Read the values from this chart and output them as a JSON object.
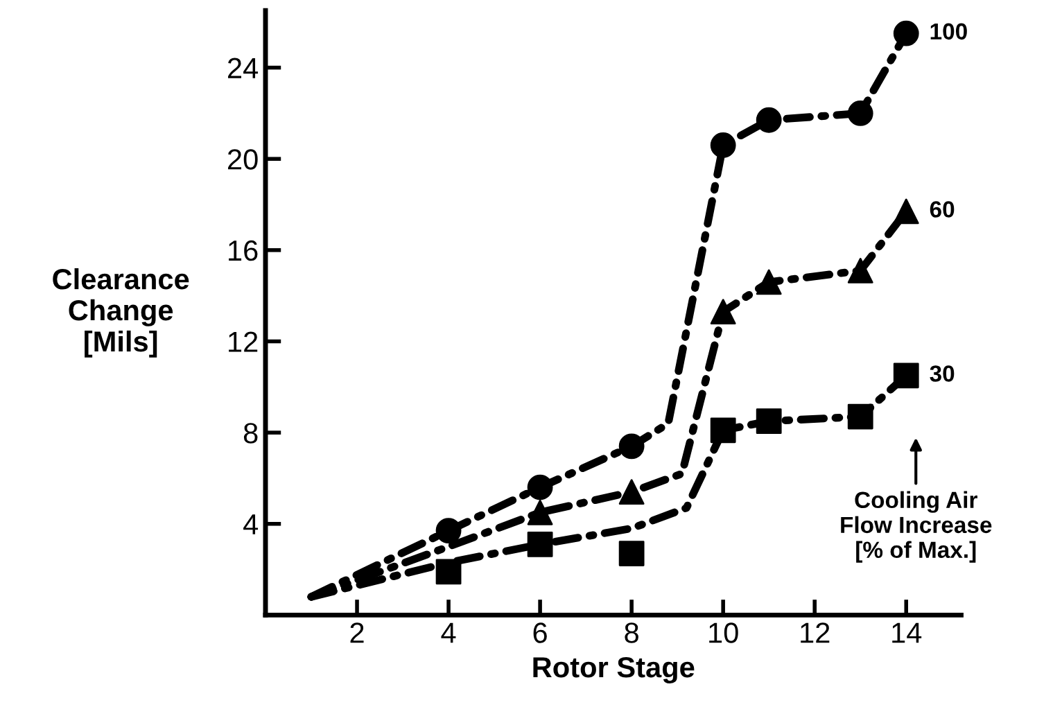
{
  "chart_data": {
    "type": "line",
    "xlabel": "Rotor Stage",
    "ylabel": "Clearance\nChange\n[Mils]",
    "xlim": [
      0,
      15.2
    ],
    "ylim": [
      0,
      26.5
    ],
    "xticks": [
      2,
      4,
      6,
      8,
      10,
      12,
      14
    ],
    "yticks": [
      4,
      8,
      12,
      16,
      20,
      24
    ],
    "grid": false,
    "legend": false,
    "series": [
      {
        "color": "#000000",
        "line_style": "dashdot",
        "marker": "none",
        "x": [
          1,
          4,
          6,
          8,
          8.8,
          10,
          11,
          13,
          14
        ],
        "values": [
          0.8,
          3.7,
          5.6,
          7.4,
          8.4,
          20.6,
          21.7,
          22,
          25.5
        ]
      },
      {
        "color": "#000000",
        "line_style": "dashdot",
        "marker": "none",
        "x": [
          1,
          4,
          6,
          8,
          9.1,
          10,
          11,
          13,
          14
        ],
        "values": [
          0.8,
          3.0,
          4.5,
          5.4,
          6.2,
          13.3,
          14.6,
          15.1,
          17.7
        ]
      },
      {
        "color": "#000000",
        "line_style": "dashdot",
        "marker": "none",
        "x": [
          1,
          4,
          6,
          8,
          9.2,
          10,
          11,
          13,
          14
        ],
        "values": [
          0.8,
          2.3,
          3.1,
          3.8,
          4.7,
          8.1,
          8.5,
          8.7,
          10.5
        ]
      },
      {
        "type": "scatter",
        "name": "100",
        "color": "#000000",
        "marker": "circle",
        "x": [
          4,
          6,
          8,
          10,
          11,
          13,
          14
        ],
        "values": [
          3.7,
          5.6,
          7.4,
          20.6,
          21.7,
          22,
          25.5
        ]
      },
      {
        "type": "scatter",
        "name": "60",
        "color": "#000000",
        "marker": "triangle",
        "x": [
          6,
          8,
          10,
          11,
          13,
          14
        ],
        "values": [
          4.5,
          5.4,
          13.3,
          14.6,
          15.1,
          17.7
        ]
      },
      {
        "type": "scatter",
        "name": "30",
        "color": "#000000",
        "marker": "square",
        "x": [
          4,
          6,
          8,
          10,
          11,
          13,
          14
        ],
        "values": [
          1.9,
          3.1,
          2.7,
          8.1,
          8.5,
          8.7,
          10.5
        ]
      }
    ],
    "annotations": [
      "Cooling Air\nFlow Increase\n[% of Max.]"
    ]
  }
}
